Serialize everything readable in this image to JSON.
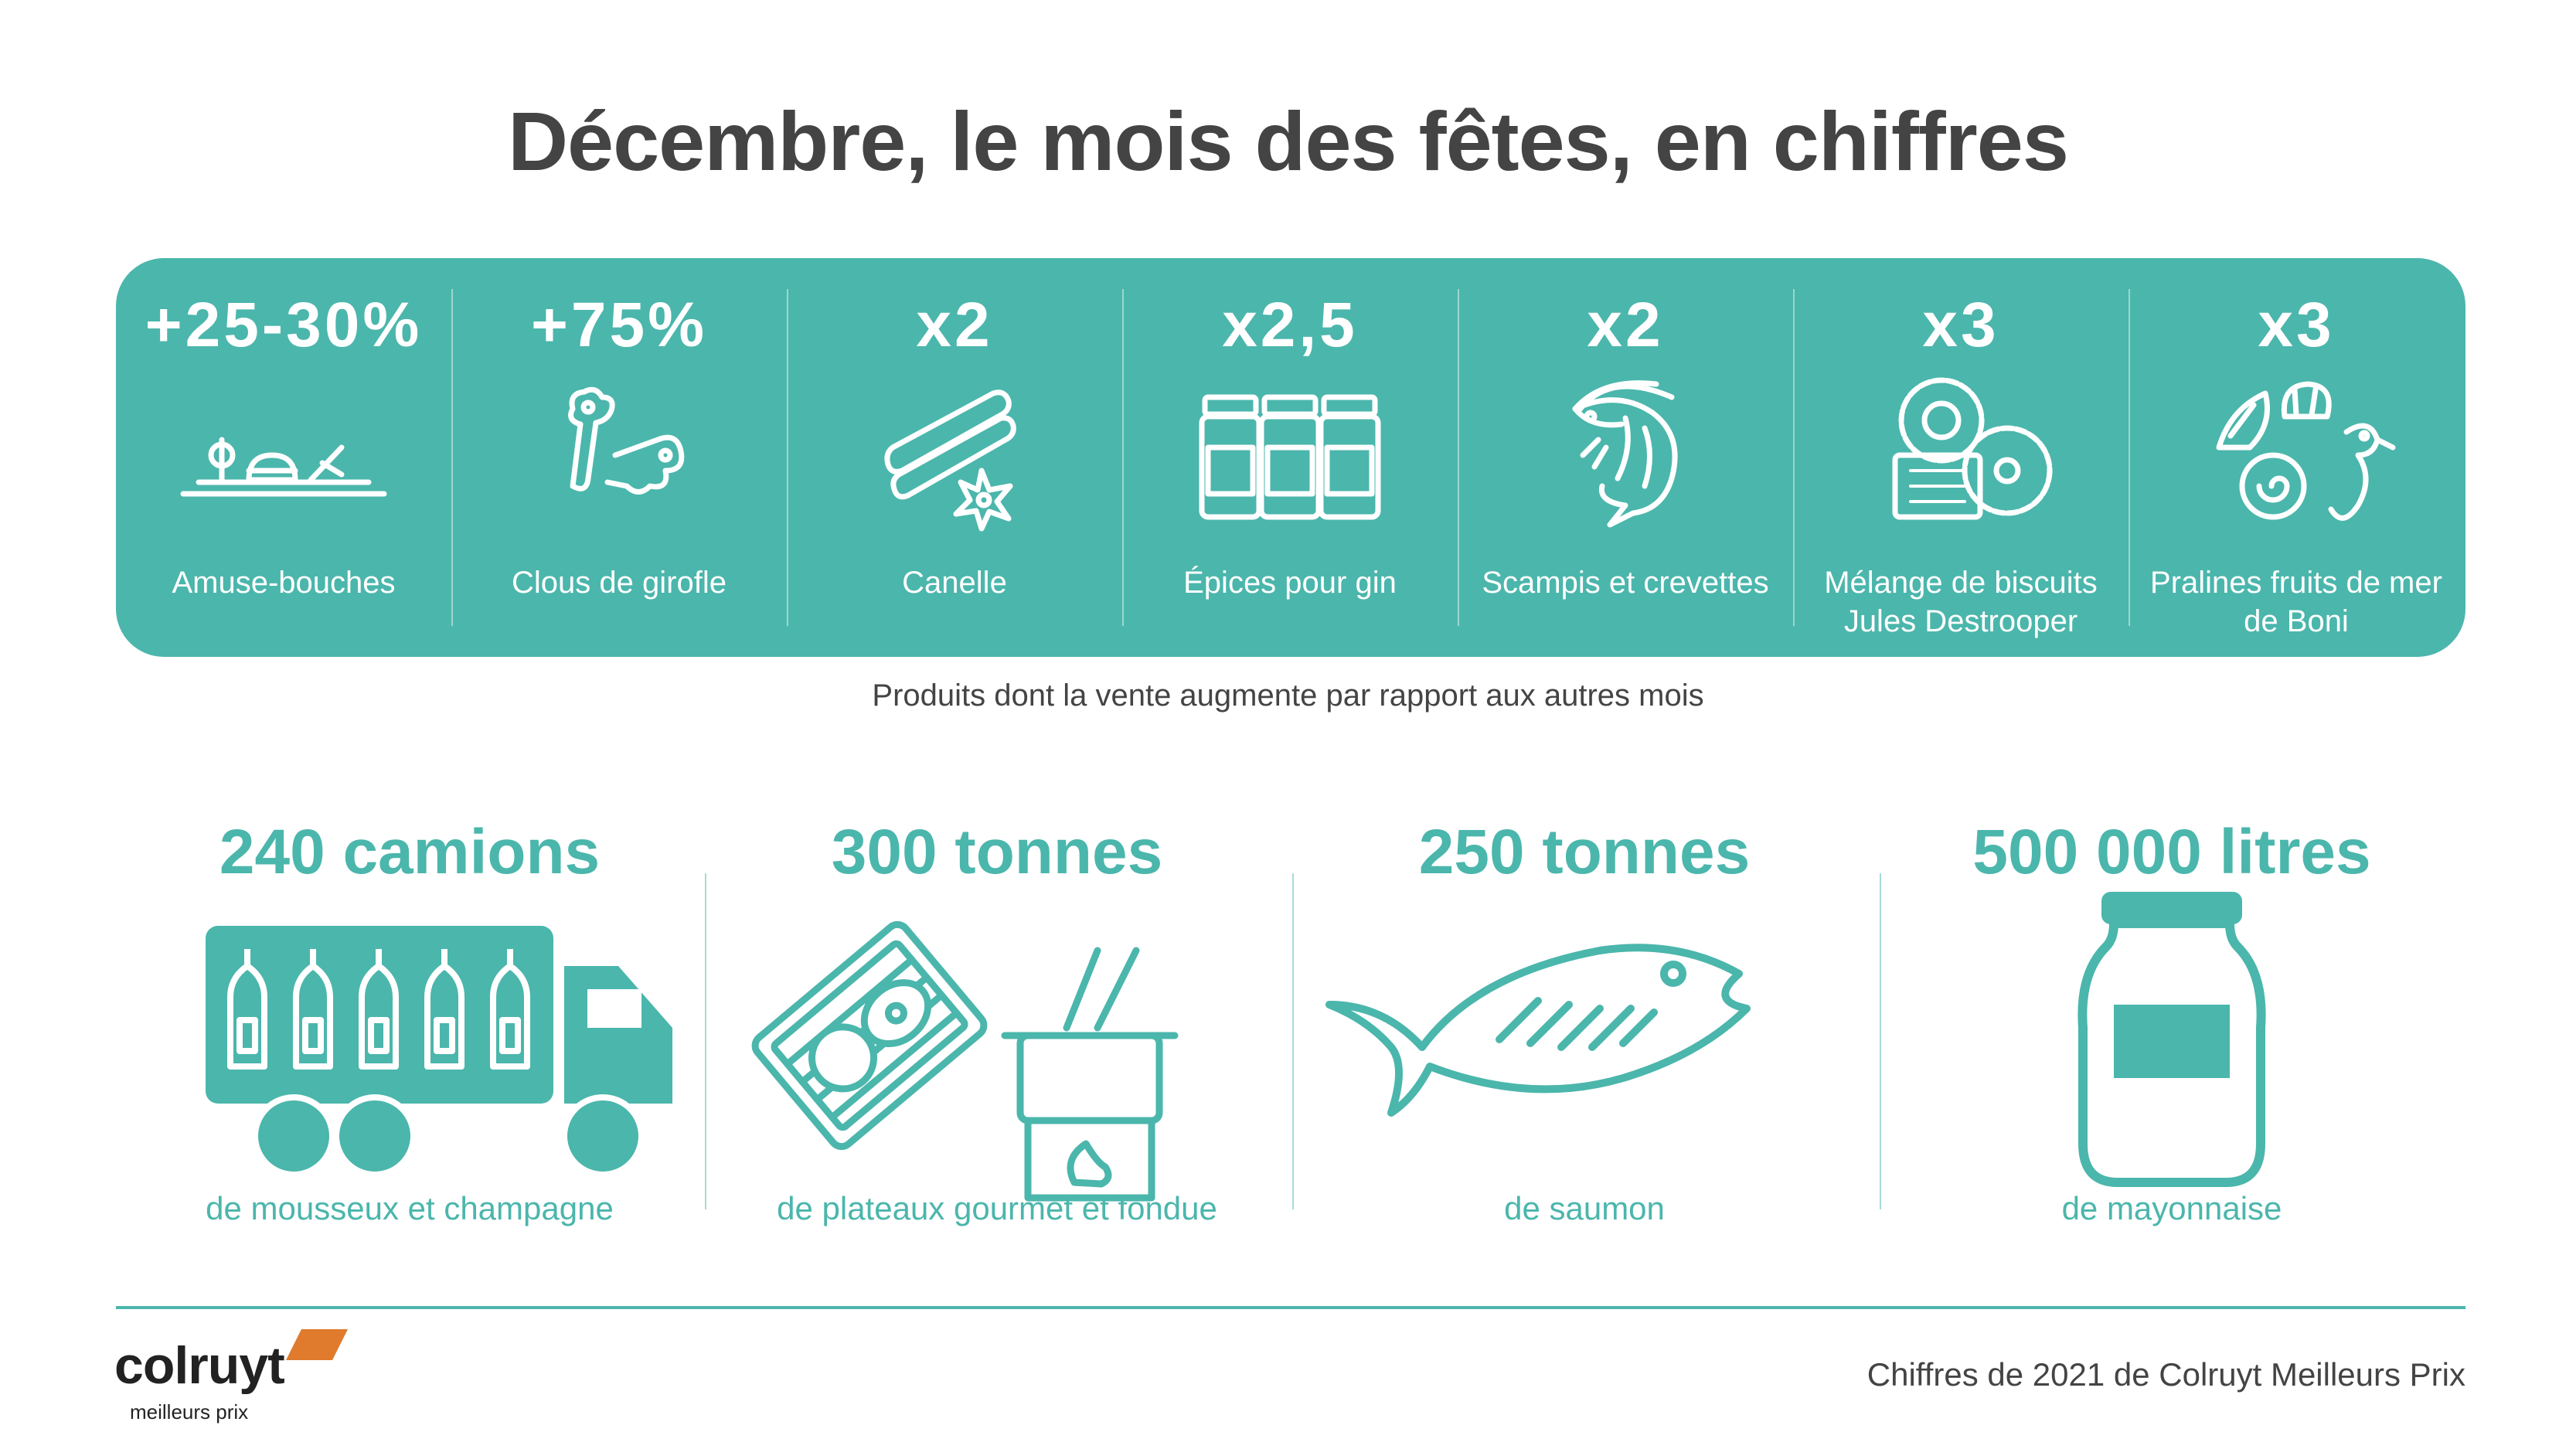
{
  "title": "Décembre, le mois des fêtes, en chiffres",
  "colors": {
    "accent": "#4bb6ac",
    "text": "#444444",
    "logo_orange": "#e07a2c"
  },
  "band": {
    "items": [
      {
        "value": "+25-30%",
        "label": "Amuse-bouches",
        "icon": "amuse-bouche-icon"
      },
      {
        "value": "+75%",
        "label": "Clous de girofle",
        "icon": "clove-icon"
      },
      {
        "value": "x2",
        "label": "Canelle",
        "icon": "cinnamon-icon"
      },
      {
        "value": "x2,5",
        "label": "Épices pour gin",
        "icon": "spice-jars-icon"
      },
      {
        "value": "x2",
        "label": "Scampis et crevettes",
        "icon": "shrimp-icon"
      },
      {
        "value": "x3",
        "label": "Mélange de biscuits Jules Destrooper",
        "icon": "biscuits-icon"
      },
      {
        "value": "x3",
        "label": "Pralines fruits de mer de Boni",
        "icon": "seashell-pralines-icon"
      }
    ],
    "caption": "Produits dont la vente augmente par rapport aux autres mois"
  },
  "stats": [
    {
      "value": "240 camions",
      "label": "de mousseux et champagne",
      "icon": "truck-bottles-icon"
    },
    {
      "value": "300 tonnes",
      "label": "de plateaux gourmet et fondue",
      "icon": "grill-fondue-icon"
    },
    {
      "value": "250 tonnes",
      "label": "de saumon",
      "icon": "fish-icon"
    },
    {
      "value": "500 000 litres",
      "label": "de mayonnaise",
      "icon": "jar-icon"
    }
  ],
  "footer": {
    "logo_word": "colruyt",
    "logo_sub": "meilleurs prix",
    "source": "Chiffres de 2021 de Colruyt Meilleurs Prix"
  }
}
